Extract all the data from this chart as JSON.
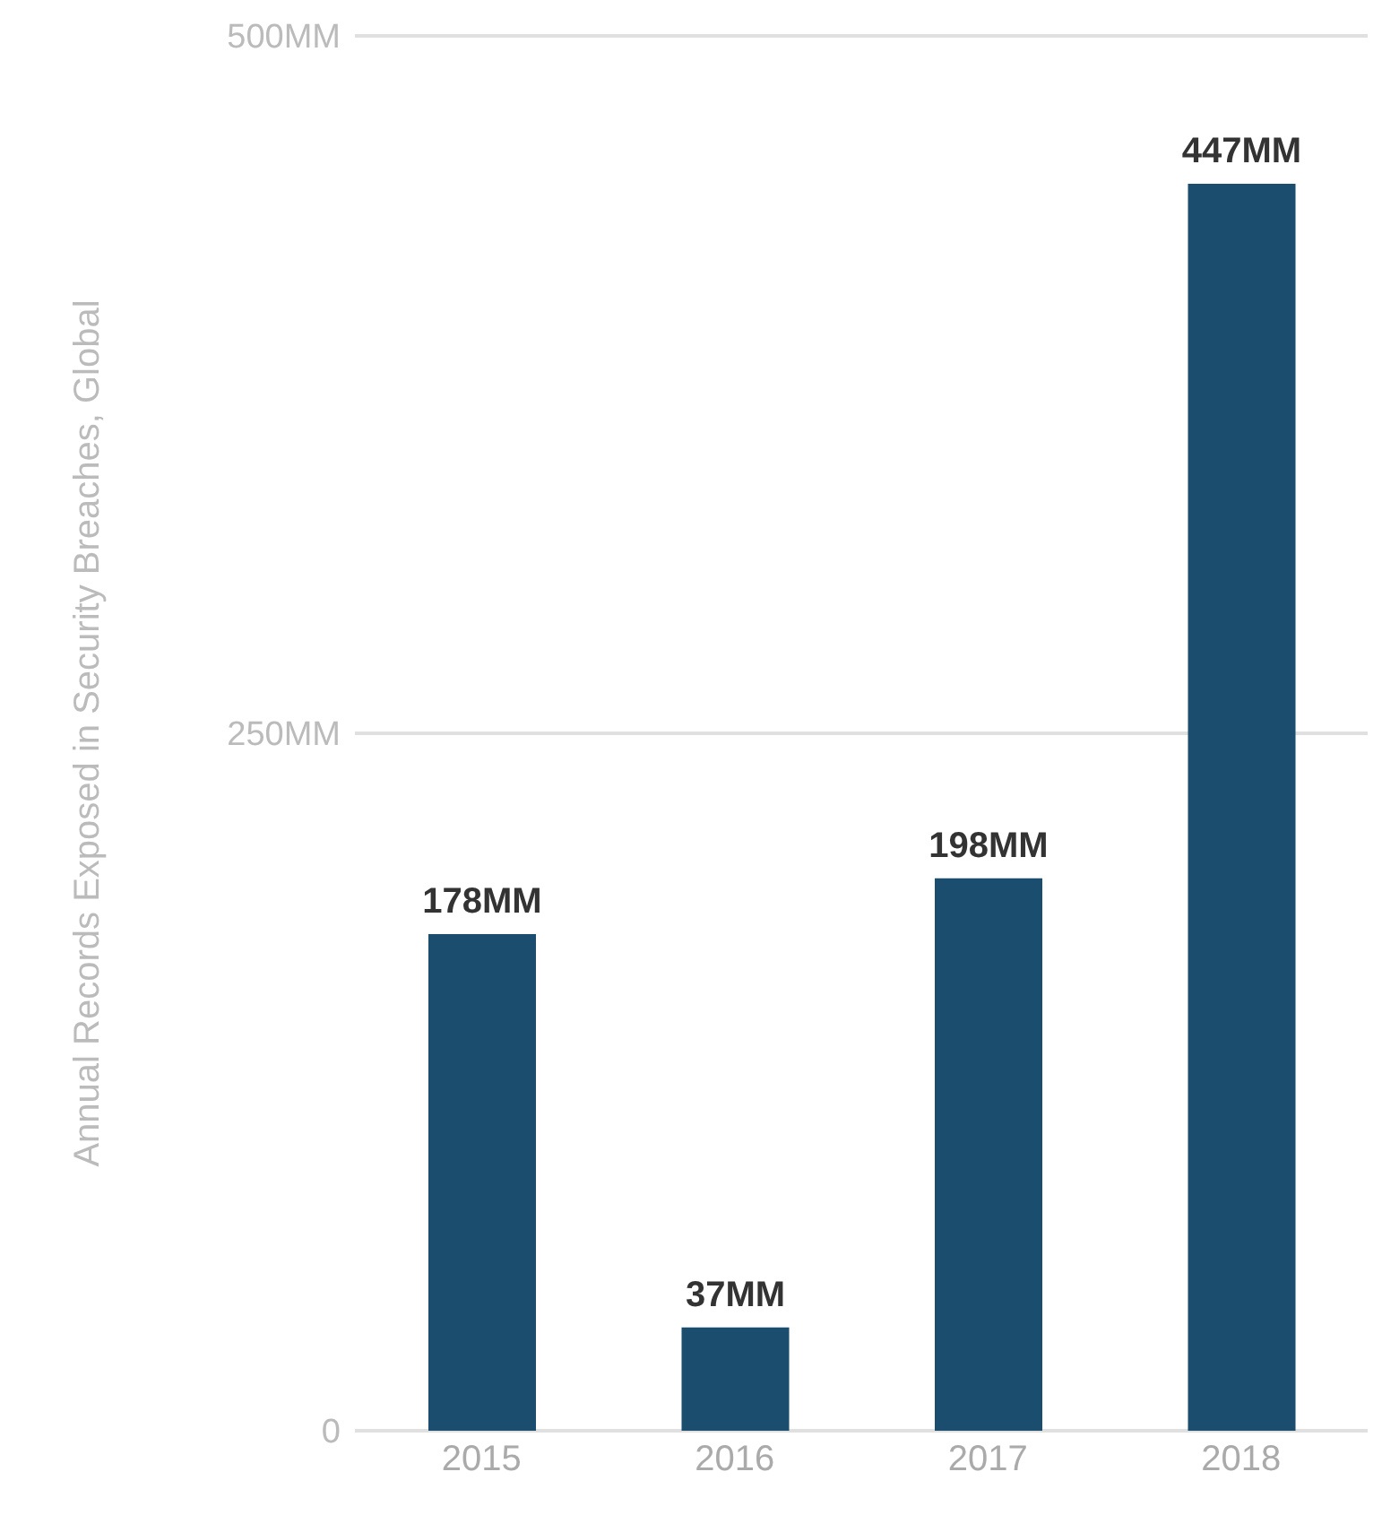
{
  "chart_data": {
    "type": "bar",
    "ylabel": "Annual Records Exposed in Security Breaches, Global",
    "categories": [
      "2015",
      "2016",
      "2017",
      "2018"
    ],
    "values": [
      178,
      37,
      198,
      447
    ],
    "value_labels": [
      "178MM",
      "37MM",
      "198MM",
      "447MM"
    ],
    "color": "#1b4d6e",
    "ylim": [
      0,
      500
    ],
    "yticks": [
      {
        "value": 0,
        "label": "0"
      },
      {
        "value": 250,
        "label": "250MM"
      },
      {
        "value": 500,
        "label": "500MM"
      }
    ],
    "grid": "y",
    "legend": false
  }
}
